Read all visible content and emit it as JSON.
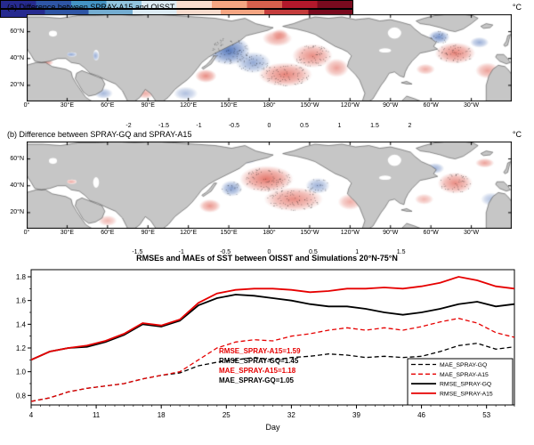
{
  "figure": {
    "lat_ticks": [
      "60°N",
      "40°N",
      "20°N"
    ],
    "lon_ticks": [
      "0°",
      "30°E",
      "60°E",
      "90°E",
      "120°E",
      "150°E",
      "180°",
      "150°W",
      "120°W",
      "90°W",
      "60°W",
      "30°W"
    ],
    "panel_a": {
      "title": "(a) Difference between SPRAY-A15 and OISST",
      "unit": "°C",
      "colorbar_ticks": [
        "-2",
        "-1.5",
        "-1",
        "-0.5",
        "0",
        "0.5",
        "1",
        "1.5",
        "2"
      ],
      "colorbar_colors": [
        "#262a8f",
        "#2e55a5",
        "#4393c3",
        "#92c5de",
        "#dcebf3",
        "#f7dcce",
        "#f4a582",
        "#d6604d",
        "#b2182b",
        "#7a0a1e"
      ]
    },
    "panel_b": {
      "title": "(b) Difference between SPRAY-GQ and SPRAY-A15",
      "unit": "°C",
      "colorbar_ticks": [
        "-1.5",
        "-1",
        "-0.5",
        "0",
        "0.5",
        "1",
        "1.5"
      ],
      "colorbar_colors": [
        "#262a8f",
        "#2e55a5",
        "#74add1",
        "#dcebf3",
        "#f7dcce",
        "#f4a582",
        "#c43c3c",
        "#7a0a1e"
      ]
    }
  },
  "map_anomalies": {
    "colors": {
      "r": "#d7301f",
      "b": "#3a62b0"
    },
    "panel_a": [
      [
        150,
        46,
        16,
        11,
        "b",
        0.85,
        1
      ],
      [
        168,
        37,
        13,
        8,
        "b",
        0.55,
        1
      ],
      [
        186,
        55,
        11,
        6,
        "r",
        0.45,
        0
      ],
      [
        192,
        28,
        20,
        9,
        "r",
        0.6,
        1
      ],
      [
        212,
        42,
        15,
        9,
        "r",
        0.55,
        1
      ],
      [
        230,
        33,
        9,
        7,
        "r",
        0.45,
        0
      ],
      [
        133,
        27,
        8,
        5,
        "r",
        0.55,
        0
      ],
      [
        118,
        14,
        9,
        5,
        "b",
        0.4,
        0
      ],
      [
        160,
        63,
        9,
        4,
        "b",
        0.45,
        0
      ],
      [
        318,
        44,
        15,
        8,
        "r",
        0.6,
        1
      ],
      [
        306,
        56,
        8,
        5,
        "b",
        0.7,
        1
      ],
      [
        336,
        52,
        7,
        4,
        "b",
        0.5,
        0
      ],
      [
        342,
        31,
        9,
        6,
        "r",
        0.45,
        0
      ],
      [
        296,
        32,
        7,
        4,
        "r",
        0.4,
        0
      ],
      [
        33,
        43,
        5,
        2,
        "b",
        0.55,
        0
      ],
      [
        51,
        42,
        3,
        4,
        "b",
        0.5,
        0
      ],
      [
        14,
        37,
        6,
        2.5,
        "r",
        0.5,
        0
      ],
      [
        57,
        14,
        7,
        4,
        "b",
        0.45,
        0
      ],
      [
        88,
        14,
        7,
        4,
        "r",
        0.4,
        0
      ],
      [
        188,
        58,
        6,
        4,
        "r",
        0.35,
        0
      ]
    ],
    "panel_b": [
      [
        178,
        45,
        20,
        10,
        "r",
        0.65,
        1
      ],
      [
        198,
        30,
        22,
        9,
        "r",
        0.55,
        1
      ],
      [
        152,
        38,
        8,
        6,
        "b",
        0.6,
        1
      ],
      [
        216,
        40,
        9,
        6,
        "b",
        0.5,
        1
      ],
      [
        136,
        25,
        8,
        5,
        "r",
        0.5,
        0
      ],
      [
        240,
        28,
        9,
        6,
        "r",
        0.4,
        0
      ],
      [
        163,
        60,
        8,
        4,
        "b",
        0.4,
        0
      ],
      [
        318,
        42,
        13,
        8,
        "r",
        0.55,
        1
      ],
      [
        303,
        53,
        7,
        4,
        "b",
        0.5,
        0
      ],
      [
        340,
        57,
        7,
        3.5,
        "r",
        0.45,
        0
      ],
      [
        345,
        30,
        8,
        5,
        "b",
        0.4,
        0
      ],
      [
        295,
        30,
        7,
        4,
        "r",
        0.35,
        0
      ],
      [
        33,
        43,
        5,
        2,
        "r",
        0.4,
        0
      ],
      [
        60,
        14,
        7,
        4,
        "r",
        0.35,
        0
      ],
      [
        100,
        14,
        8,
        4,
        "b",
        0.3,
        0
      ]
    ]
  },
  "chart_data": {
    "type": "line",
    "title": "RMSEs and MAEs of SST between OISST and Simulations 20°N-75°N",
    "xlabel": "Day",
    "xlim": [
      4,
      56
    ],
    "ylim": [
      0.72,
      1.86
    ],
    "x_ticks": [
      4,
      11,
      18,
      25,
      32,
      39,
      46,
      53
    ],
    "y_ticks": [
      "0.8",
      "1.0",
      "1.2",
      "1.4",
      "1.6",
      "1.8"
    ],
    "grid": false,
    "legend_position": "lower right",
    "x": [
      4,
      6,
      8,
      10,
      12,
      14,
      16,
      18,
      20,
      22,
      24,
      26,
      28,
      30,
      32,
      34,
      36,
      38,
      40,
      42,
      44,
      46,
      48,
      50,
      52,
      54,
      56
    ],
    "series": [
      {
        "name": "MAE_SPRAY-GQ",
        "color": "#000000",
        "dashed": true,
        "values": [
          0.75,
          0.78,
          0.83,
          0.86,
          0.88,
          0.9,
          0.94,
          0.97,
          0.99,
          1.05,
          1.08,
          1.1,
          1.12,
          1.1,
          1.12,
          1.13,
          1.15,
          1.14,
          1.12,
          1.13,
          1.12,
          1.13,
          1.17,
          1.22,
          1.24,
          1.19,
          1.21
        ]
      },
      {
        "name": "MAE_SPRAY-A15",
        "color": "#e60000",
        "dashed": true,
        "values": [
          0.75,
          0.78,
          0.83,
          0.86,
          0.88,
          0.9,
          0.94,
          0.97,
          1.0,
          1.1,
          1.2,
          1.25,
          1.27,
          1.26,
          1.3,
          1.32,
          1.35,
          1.37,
          1.35,
          1.37,
          1.35,
          1.38,
          1.42,
          1.45,
          1.41,
          1.33,
          1.29
        ]
      },
      {
        "name": "RMSE_SPRAY-GQ",
        "color": "#000000",
        "dashed": false,
        "values": [
          1.1,
          1.17,
          1.2,
          1.21,
          1.25,
          1.31,
          1.4,
          1.38,
          1.43,
          1.56,
          1.62,
          1.65,
          1.64,
          1.62,
          1.6,
          1.57,
          1.55,
          1.55,
          1.53,
          1.5,
          1.48,
          1.5,
          1.53,
          1.57,
          1.59,
          1.55,
          1.57
        ]
      },
      {
        "name": "RMSE_SPRAY-A15",
        "color": "#e60000",
        "dashed": false,
        "values": [
          1.1,
          1.17,
          1.2,
          1.22,
          1.26,
          1.32,
          1.41,
          1.39,
          1.44,
          1.58,
          1.66,
          1.69,
          1.7,
          1.7,
          1.69,
          1.67,
          1.68,
          1.7,
          1.7,
          1.71,
          1.7,
          1.72,
          1.75,
          1.8,
          1.77,
          1.72,
          1.7
        ]
      }
    ],
    "annotations": [
      {
        "text": "RMSE_SPRAY-A15=1.59",
        "color": "#e60000"
      },
      {
        "text": "RMSE_SPRAY-GQ=1.45",
        "color": "#000000"
      },
      {
        "text": "MAE_SPRAY-A15=1.18",
        "color": "#e60000"
      },
      {
        "text": "MAE_SPRAY-GQ=1.05",
        "color": "#000000"
      }
    ]
  }
}
